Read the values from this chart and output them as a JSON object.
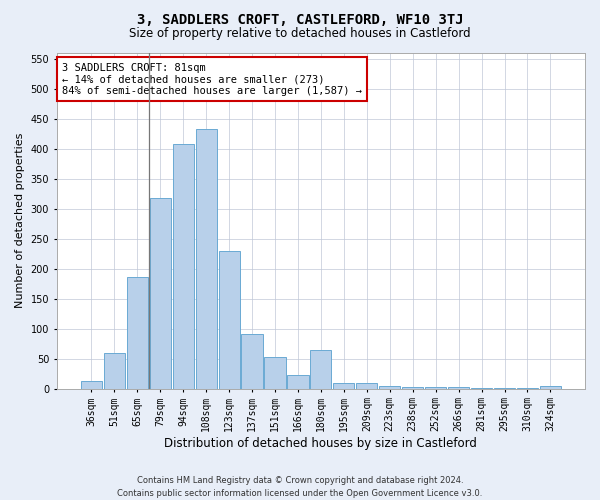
{
  "title": "3, SADDLERS CROFT, CASTLEFORD, WF10 3TJ",
  "subtitle": "Size of property relative to detached houses in Castleford",
  "xlabel": "Distribution of detached houses by size in Castleford",
  "ylabel": "Number of detached properties",
  "categories": [
    "36sqm",
    "51sqm",
    "65sqm",
    "79sqm",
    "94sqm",
    "108sqm",
    "123sqm",
    "137sqm",
    "151sqm",
    "166sqm",
    "180sqm",
    "195sqm",
    "209sqm",
    "223sqm",
    "238sqm",
    "252sqm",
    "266sqm",
    "281sqm",
    "295sqm",
    "310sqm",
    "324sqm"
  ],
  "values": [
    12,
    60,
    186,
    317,
    407,
    432,
    230,
    91,
    53,
    22,
    65,
    10,
    10,
    5,
    3,
    3,
    3,
    1,
    1,
    1,
    4
  ],
  "bar_color": "#b8d0ea",
  "bar_edge_color": "#6aaad4",
  "annotation_text": "3 SADDLERS CROFT: 81sqm\n← 14% of detached houses are smaller (273)\n84% of semi-detached houses are larger (1,587) →",
  "annotation_box_color": "#ffffff",
  "annotation_box_edge_color": "#cc0000",
  "ylim": [
    0,
    560
  ],
  "yticks": [
    0,
    50,
    100,
    150,
    200,
    250,
    300,
    350,
    400,
    450,
    500,
    550
  ],
  "vline_x_index": 2.5,
  "footer_line1": "Contains HM Land Registry data © Crown copyright and database right 2024.",
  "footer_line2": "Contains public sector information licensed under the Open Government Licence v3.0.",
  "bg_color": "#e8eef8",
  "plot_bg_color": "#ffffff",
  "grid_color": "#c0c8d8",
  "title_fontsize": 10,
  "subtitle_fontsize": 8.5,
  "ylabel_fontsize": 8,
  "xlabel_fontsize": 8.5,
  "tick_fontsize": 7,
  "footer_fontsize": 6,
  "annotation_fontsize": 7.5
}
